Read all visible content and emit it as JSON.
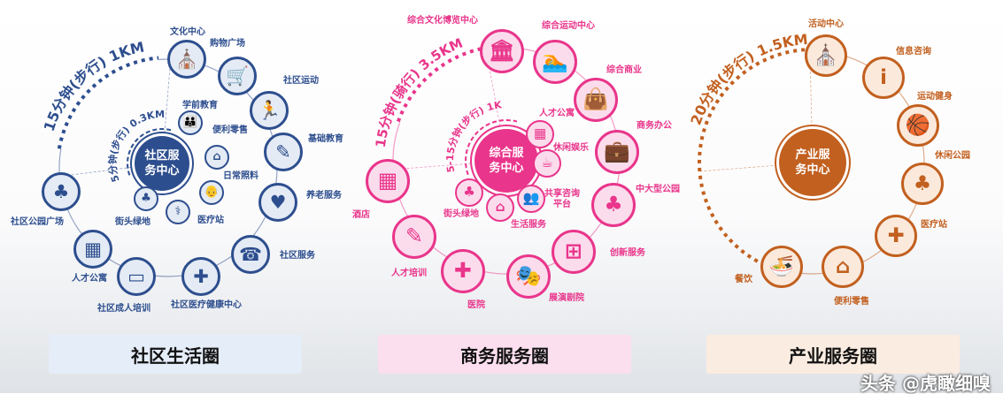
{
  "panels": [
    {
      "id": "community",
      "color": "#2d4e8e",
      "light": "#e4ebf5",
      "center_label": "社区服务\n务中心",
      "center_lines": [
        "社区服",
        "务中心"
      ],
      "outer_arc_text": "15分钟(步行) 1KM",
      "inner_arc_text": "5分钟(步行) 0.3KM",
      "outer_nodes": [
        {
          "label": "文化中心",
          "icon": "church-icon",
          "glyph": "⛪"
        },
        {
          "label": "购物广场",
          "icon": "shopping-cart-icon",
          "glyph": "🛒"
        },
        {
          "label": "社区运动",
          "icon": "treadmill-icon",
          "glyph": "🏃"
        },
        {
          "label": "基础教育",
          "icon": "student-desk-icon",
          "glyph": "✎"
        },
        {
          "label": "养老服务",
          "icon": "care-hands-icon",
          "glyph": "♥"
        },
        {
          "label": "社区服务",
          "icon": "phone-24-icon",
          "glyph": "☎"
        },
        {
          "label": "社区医疗健康中心",
          "icon": "medical-kit-icon",
          "glyph": "✚"
        },
        {
          "label": "社区成人培训",
          "icon": "teacher-board-icon",
          "glyph": "▭"
        },
        {
          "label": "人才公寓",
          "icon": "apartment-building-icon",
          "glyph": "▦"
        },
        {
          "label": "社区公园广场",
          "icon": "park-tree-icon",
          "glyph": "♣"
        }
      ],
      "inner_nodes": [
        {
          "label": "学前教育",
          "icon": "family-children-icon",
          "glyph": "👪"
        },
        {
          "label": "便利零售",
          "icon": "store-house-icon",
          "glyph": "⌂"
        },
        {
          "label": "日常照料",
          "icon": "elderly-cane-icon",
          "glyph": "👴"
        },
        {
          "label": "医疗站",
          "icon": "stethoscope-icon",
          "glyph": "⚕"
        },
        {
          "label": "街头绿地",
          "icon": "tree-bench-icon",
          "glyph": "♣"
        }
      ],
      "bar_label": "社区生活圈"
    },
    {
      "id": "business",
      "color": "#e9358b",
      "light": "#fbdcec",
      "center_lines": [
        "综合服",
        "务中心"
      ],
      "outer_arc_text": "15分钟(骑行) 3.5KM",
      "inner_arc_text": "5-15分钟(步行) 1KM",
      "outer_nodes": [
        {
          "label": "综合文化博览中心",
          "icon": "museum-building-icon",
          "glyph": "🏛"
        },
        {
          "label": "综合运动中心",
          "icon": "swim-tennis-run-icon",
          "glyph": "🏊"
        },
        {
          "label": "综合商业",
          "icon": "shopping-bag-icon",
          "glyph": "👜"
        },
        {
          "label": "商务办公",
          "icon": "businessman-briefcase-icon",
          "glyph": "💼"
        },
        {
          "label": "中大型公园",
          "icon": "trees-icon",
          "glyph": "♣"
        },
        {
          "label": "创新服务",
          "icon": "network-diagram-icon",
          "glyph": "⊞"
        },
        {
          "label": "展演剧院",
          "icon": "theater-curtain-icon",
          "glyph": "🎭"
        },
        {
          "label": "医院",
          "icon": "hospital-icon",
          "glyph": "✚"
        },
        {
          "label": "人才培训",
          "icon": "person-desk-icon",
          "glyph": "✎"
        },
        {
          "label": "酒店",
          "icon": "hotel-building-icon",
          "glyph": "▦"
        }
      ],
      "inner_nodes": [
        {
          "label": "人才公寓",
          "icon": "apartment-building-icon",
          "glyph": "▦"
        },
        {
          "label": "休闲娱乐",
          "icon": "coffee-cup-icon",
          "glyph": "☕"
        },
        {
          "label": "共享咨询\n平台",
          "label_lines": [
            "共享咨询",
            "平台"
          ],
          "icon": "people-group-icon",
          "glyph": "👥"
        },
        {
          "label": "生活服务",
          "icon": "storefront-icon",
          "glyph": "⌂"
        },
        {
          "label": "街头绿地",
          "icon": "tree-bench-icon",
          "glyph": "♣"
        }
      ],
      "bar_label": "商务服务圈"
    },
    {
      "id": "industry",
      "color": "#c2601f",
      "light": "#fbeadc",
      "center_lines": [
        "产业服",
        "务中心"
      ],
      "outer_arc_text": "20分钟(步行) 1.5KM",
      "outer_nodes": [
        {
          "label": "活动中心",
          "icon": "church-icon",
          "glyph": "⛪"
        },
        {
          "label": "信息咨询",
          "icon": "info-icon",
          "glyph": "i"
        },
        {
          "label": "运动健身",
          "icon": "basketball-icon",
          "glyph": "🏀"
        },
        {
          "label": "休闲公园",
          "icon": "tree-bench-icon",
          "glyph": "♣"
        },
        {
          "label": "医疗站",
          "icon": "medical-kit-icon",
          "glyph": "✚"
        },
        {
          "label": "便利零售",
          "icon": "storefront-icon",
          "glyph": "⌂"
        },
        {
          "label": "餐饮",
          "icon": "noodle-bowl-icon",
          "glyph": "🍜"
        }
      ],
      "bar_label": "产业服务圈"
    }
  ],
  "watermark": "头条 @虎瞰细嗅"
}
